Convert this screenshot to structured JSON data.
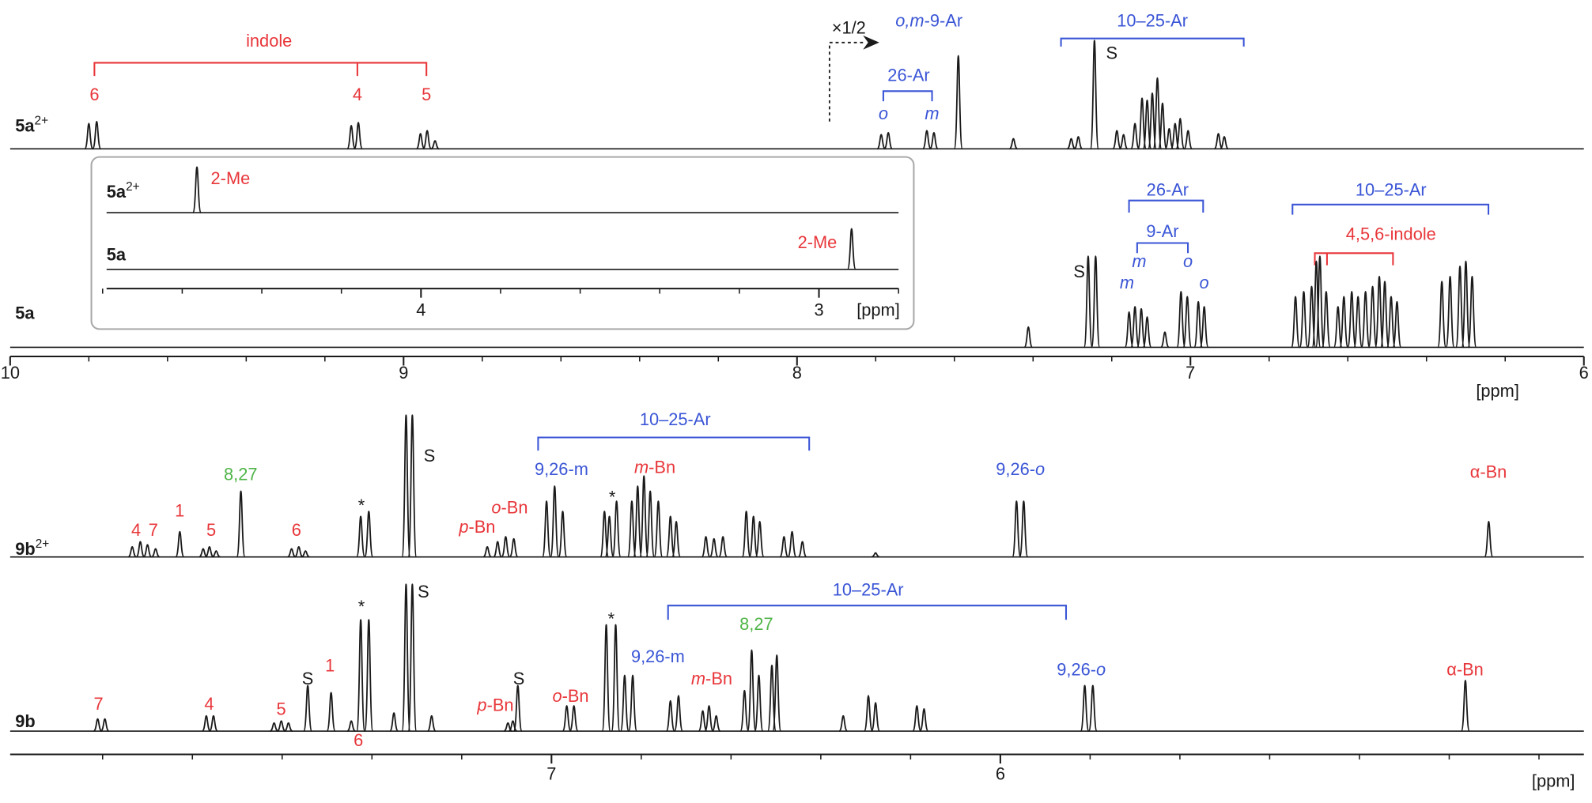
{
  "chart_data": [
    {
      "type": "spectrum",
      "xlim": [
        10,
        6
      ],
      "xticks": [
        10,
        9,
        8,
        7,
        6
      ],
      "minor_xticks": [
        9.8,
        9.6,
        9.4,
        9.2,
        8.8,
        8.6,
        8.4,
        8.2,
        7.8,
        7.6,
        7.4,
        7.2,
        6.8,
        6.6,
        6.4,
        6.2
      ],
      "x_label": "[ppm]",
      "series": [
        {
          "name": "5a",
          "superscript": "2+",
          "color": "#1a1a1a",
          "x": [
            9.8,
            9.78,
            9.133,
            9.115,
            8.957,
            8.94,
            8.92,
            7.786,
            7.768,
            7.67,
            7.652,
            7.59,
            7.45,
            7.303,
            7.285,
            7.244,
            7.187,
            7.17,
            7.141,
            7.123,
            7.11,
            7.097,
            7.084,
            7.071,
            7.054,
            7.039,
            7.026,
            7.006,
            6.929,
            6.914
          ],
          "values": [
            25,
            27,
            23,
            26,
            15,
            18,
            8,
            14,
            16,
            18,
            16,
            92,
            10,
            10,
            12,
            107,
            18,
            14,
            25,
            50,
            48,
            55,
            70,
            45,
            20,
            25,
            30,
            18,
            15,
            12
          ]
        },
        {
          "name": "5a",
          "color": "#1a1a1a",
          "x": [
            7.412,
            7.26,
            7.241,
            7.156,
            7.141,
            7.125,
            7.11,
            7.065,
            7.024,
            7.008,
            6.98,
            6.965,
            6.733,
            6.712,
            6.692,
            6.68,
            6.671,
            6.655,
            6.625,
            6.61,
            6.59,
            6.574,
            6.555,
            6.537,
            6.52,
            6.506,
            6.49,
            6.475,
            6.361,
            6.34,
            6.315,
            6.3,
            6.284
          ],
          "values": [
            20,
            90,
            90,
            35,
            40,
            38,
            30,
            15,
            55,
            50,
            45,
            40,
            50,
            55,
            60,
            85,
            90,
            55,
            40,
            50,
            55,
            50,
            55,
            60,
            70,
            65,
            50,
            45,
            65,
            70,
            80,
            85,
            70
          ]
        }
      ],
      "annotations": [
        "indole",
        "6",
        "4",
        "5",
        "×1/2",
        [
          "o,m",
          "-9-Ar"
        ],
        "10–25-Ar",
        "S",
        "26-Ar",
        "o",
        "m",
        "26-Ar",
        "10–25-Ar",
        "9-Ar",
        "4,5,6-indole",
        "m",
        "o",
        "m",
        "o",
        "S"
      ]
    },
    {
      "type": "spectrum",
      "xlim": [
        4.79,
        2.8
      ],
      "xticks": [
        4,
        3
      ],
      "minor_xticks": [
        4.8,
        4.6,
        4.4,
        4.2,
        3.8,
        3.6,
        3.4,
        3.2,
        2.8
      ],
      "x_label": "[ppm]",
      "series": [
        {
          "name": "5a",
          "superscript": "2+",
          "color": "#1a1a1a",
          "x": [
            4.563
          ],
          "values": [
            45
          ]
        },
        {
          "name": "5a",
          "color": "#1a1a1a",
          "x": [
            2.918
          ],
          "values": [
            40
          ]
        }
      ],
      "annotations": [
        "2-Me",
        "2-Me"
      ]
    },
    {
      "type": "spectrum",
      "xlim": [
        8.206,
        4.7
      ],
      "xticks": [
        7,
        6
      ],
      "minor_xticks": [
        8.0,
        7.8,
        7.6,
        7.4,
        7.2,
        6.8,
        6.6,
        6.4,
        6.2,
        5.8,
        5.6,
        5.4,
        5.2,
        5.0,
        4.8
      ],
      "x_label": "[ppm]",
      "series": [
        {
          "name": "9b",
          "superscript": "2+",
          "color": "#1a1a1a",
          "x": [
            7.934,
            7.916,
            7.9,
            7.882,
            7.828,
            7.776,
            7.762,
            7.747,
            7.692,
            7.579,
            7.563,
            7.548,
            7.425,
            7.407,
            7.324,
            7.31,
            7.143,
            7.12,
            7.102,
            7.084,
            7.011,
            6.993,
            6.975,
            6.882,
            6.871,
            6.855,
            6.821,
            6.808,
            6.794,
            6.78,
            6.762,
            6.735,
            6.722,
            6.656,
            6.638,
            6.618,
            6.566,
            6.55,
            6.536,
            6.482,
            6.464,
            6.441,
            6.278,
            5.964,
            5.948,
            4.912
          ],
          "values": [
            10,
            15,
            12,
            8,
            25,
            8,
            10,
            6,
            65,
            8,
            10,
            6,
            40,
            45,
            140,
            140,
            10,
            15,
            20,
            18,
            55,
            70,
            45,
            45,
            40,
            55,
            55,
            70,
            80,
            65,
            55,
            40,
            35,
            20,
            18,
            20,
            45,
            40,
            35,
            20,
            25,
            15,
            4,
            55,
            55,
            35
          ]
        },
        {
          "name": "9b",
          "color": "#1a1a1a",
          "x": [
            8.011,
            7.995,
            7.769,
            7.753,
            7.618,
            7.602,
            7.586,
            7.543,
            7.491,
            7.446,
            7.425,
            7.407,
            7.351,
            7.324,
            7.31,
            7.267,
            7.097,
            7.086,
            7.075,
            6.966,
            6.95,
            6.878,
            6.857,
            6.837,
            6.819,
            6.735,
            6.717,
            6.663,
            6.649,
            6.633,
            6.57,
            6.554,
            6.538,
            6.509,
            6.498,
            6.35,
            6.294,
            6.278,
            6.186,
            6.17,
            5.812,
            5.794,
            4.964
          ],
          "values": [
            12,
            12,
            15,
            15,
            8,
            10,
            8,
            45,
            38,
            10,
            110,
            110,
            18,
            145,
            145,
            15,
            8,
            10,
            45,
            25,
            25,
            105,
            105,
            55,
            55,
            30,
            35,
            20,
            25,
            15,
            40,
            80,
            55,
            65,
            75,
            15,
            35,
            28,
            25,
            22,
            45,
            45,
            50
          ]
        }
      ],
      "annotations": [
        "10–25-Ar",
        "S",
        "9,26-m",
        [
          "m",
          "-Bn"
        ],
        "8,27",
        [
          "9,26-",
          "o"
        ],
        "α-Bn",
        "1",
        "*",
        "*",
        [
          "o",
          "-Bn"
        ],
        [
          "p",
          "-Bn"
        ],
        "4",
        "7",
        "5",
        "6",
        "10–25-Ar",
        "S",
        "*",
        "*",
        "8,27",
        "9,26-m",
        [
          "9,26-",
          "o"
        ],
        [
          "m",
          "-Bn"
        ],
        "α-Bn",
        "1",
        "S",
        "S",
        [
          "o",
          "-Bn"
        ],
        [
          "p",
          "-Bn"
        ],
        "7",
        "4",
        "5",
        "6"
      ]
    }
  ]
}
